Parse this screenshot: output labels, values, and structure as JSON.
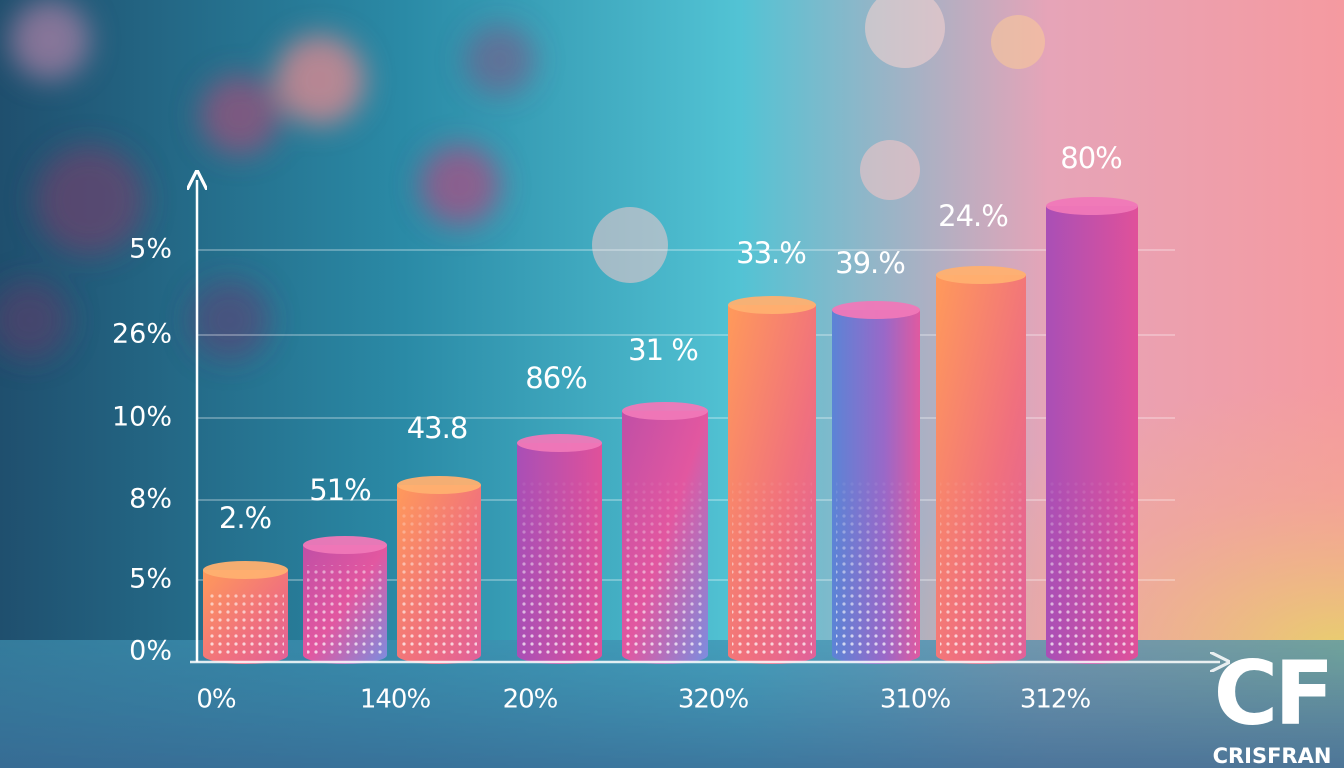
{
  "y_axis_labels": [
    "5%",
    "26%",
    "10%",
    "8%",
    "5%",
    "0%"
  ],
  "bar_labels": [
    "2.%",
    "51%",
    "43.8",
    "86%",
    "31 %",
    "33.%",
    "39.%",
    "24.%",
    "80%"
  ],
  "x_axis_labels": [
    "0%",
    "140%",
    "20%",
    "320%",
    "310%",
    "312%"
  ],
  "watermark": {
    "logo": "CF",
    "name": "CRISFRAN"
  }
}
